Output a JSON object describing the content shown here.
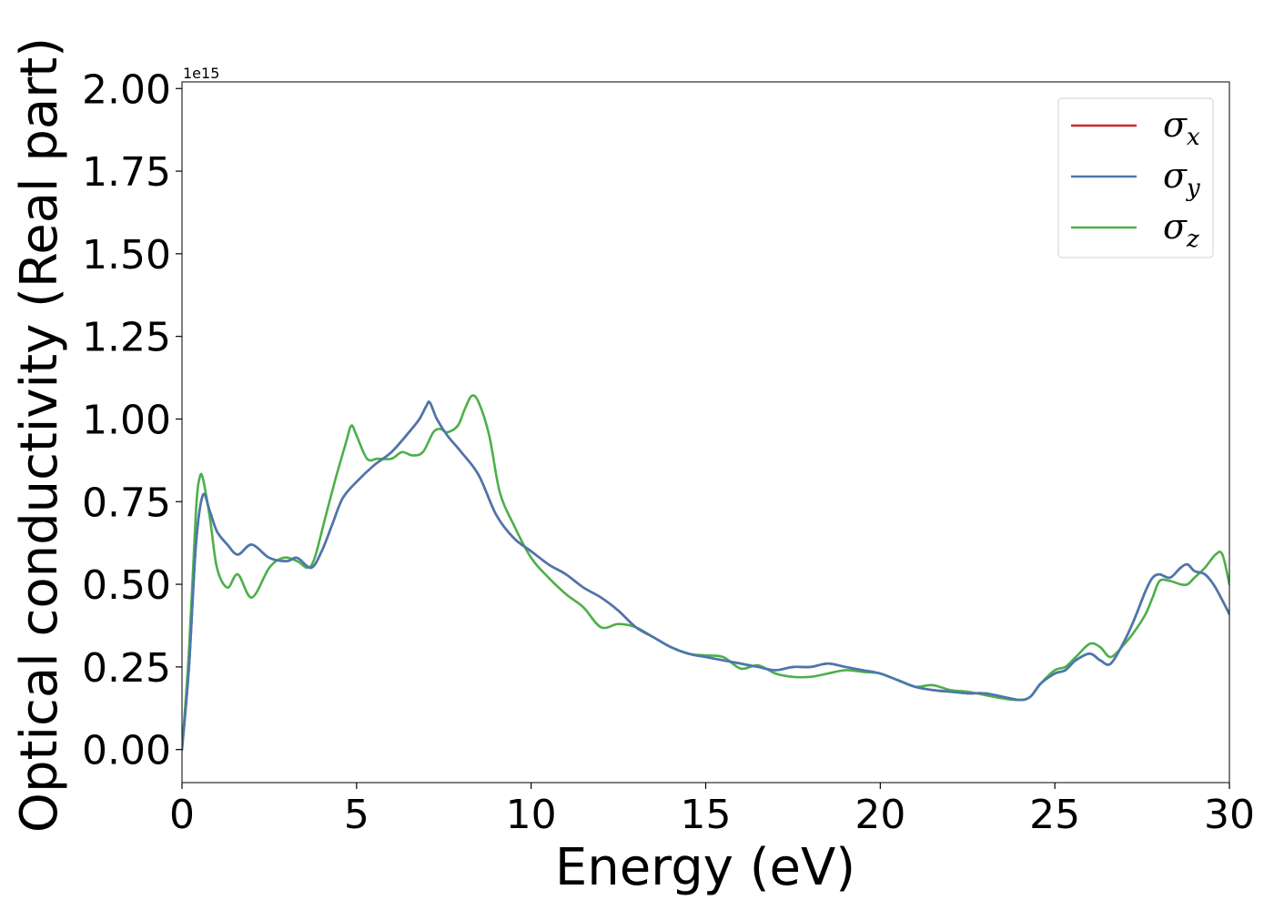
{
  "chart_data": {
    "type": "line",
    "title": "",
    "xlabel": "Energy (eV)",
    "ylabel": "Optical conductivity (Real part)",
    "y_offset_text": "1e15",
    "xlim": [
      0,
      30
    ],
    "ylim": [
      -0.1,
      2.02
    ],
    "xticks": [
      0,
      5,
      10,
      15,
      20,
      25,
      30
    ],
    "xtick_labels": [
      "0",
      "5",
      "10",
      "15",
      "20",
      "25",
      "30"
    ],
    "yticks": [
      0,
      0.25,
      0.5,
      0.75,
      1.0,
      1.25,
      1.5,
      1.75,
      2.0
    ],
    "ytick_labels": [
      "0.00",
      "0.25",
      "0.50",
      "0.75",
      "1.00",
      "1.25",
      "1.50",
      "1.75",
      "2.00"
    ],
    "grid": false,
    "legend_position": "top-right",
    "series": [
      {
        "name": "σx",
        "symbol": "σ",
        "subscript": "x",
        "color": "#d62728",
        "x": [
          0,
          0.2,
          0.4,
          0.6,
          0.8,
          1.0,
          1.3,
          1.6,
          2.0,
          2.5,
          3.0,
          3.3,
          3.7,
          4.0,
          4.3,
          4.6,
          5.0,
          5.5,
          6.0,
          6.5,
          6.8,
          7.0,
          7.1,
          7.3,
          7.6,
          8.0,
          8.5,
          9.0,
          9.5,
          10.0,
          10.5,
          11.0,
          11.5,
          12.0,
          12.5,
          13.0,
          13.5,
          14.0,
          14.5,
          15.0,
          15.5,
          16.0,
          16.5,
          17.0,
          17.5,
          18.0,
          18.5,
          19.0,
          19.5,
          20.0,
          20.5,
          21.0,
          21.5,
          22.0,
          22.5,
          23.0,
          23.5,
          24.0,
          24.3,
          24.6,
          25.0,
          25.3,
          25.6,
          26.0,
          26.3,
          26.6,
          27.0,
          27.3,
          27.6,
          27.8,
          28.0,
          28.3,
          28.6,
          28.8,
          29.0,
          29.3,
          29.6,
          30.0
        ],
        "y": [
          0,
          0.25,
          0.62,
          0.77,
          0.72,
          0.66,
          0.62,
          0.59,
          0.62,
          0.58,
          0.57,
          0.58,
          0.55,
          0.6,
          0.68,
          0.76,
          0.81,
          0.86,
          0.9,
          0.96,
          1.0,
          1.04,
          1.05,
          1.0,
          0.95,
          0.9,
          0.83,
          0.71,
          0.64,
          0.6,
          0.56,
          0.53,
          0.49,
          0.46,
          0.42,
          0.37,
          0.34,
          0.31,
          0.29,
          0.28,
          0.27,
          0.26,
          0.25,
          0.24,
          0.25,
          0.25,
          0.26,
          0.25,
          0.24,
          0.23,
          0.21,
          0.19,
          0.18,
          0.175,
          0.17,
          0.17,
          0.16,
          0.15,
          0.16,
          0.2,
          0.23,
          0.24,
          0.27,
          0.29,
          0.27,
          0.26,
          0.33,
          0.4,
          0.48,
          0.52,
          0.53,
          0.52,
          0.55,
          0.56,
          0.54,
          0.53,
          0.49,
          0.41
        ]
      },
      {
        "name": "σy",
        "symbol": "σ",
        "subscript": "y",
        "color": "#4878b0",
        "x": [
          0,
          0.2,
          0.4,
          0.6,
          0.8,
          1.0,
          1.3,
          1.6,
          2.0,
          2.5,
          3.0,
          3.3,
          3.7,
          4.0,
          4.3,
          4.6,
          5.0,
          5.5,
          6.0,
          6.5,
          6.8,
          7.0,
          7.1,
          7.3,
          7.6,
          8.0,
          8.5,
          9.0,
          9.5,
          10.0,
          10.5,
          11.0,
          11.5,
          12.0,
          12.5,
          13.0,
          13.5,
          14.0,
          14.5,
          15.0,
          15.5,
          16.0,
          16.5,
          17.0,
          17.5,
          18.0,
          18.5,
          19.0,
          19.5,
          20.0,
          20.5,
          21.0,
          21.5,
          22.0,
          22.5,
          23.0,
          23.5,
          24.0,
          24.3,
          24.6,
          25.0,
          25.3,
          25.6,
          26.0,
          26.3,
          26.6,
          27.0,
          27.3,
          27.6,
          27.8,
          28.0,
          28.3,
          28.6,
          28.8,
          29.0,
          29.3,
          29.6,
          30.0
        ],
        "y": [
          0,
          0.25,
          0.62,
          0.77,
          0.72,
          0.66,
          0.62,
          0.59,
          0.62,
          0.58,
          0.57,
          0.58,
          0.55,
          0.6,
          0.68,
          0.76,
          0.81,
          0.86,
          0.9,
          0.96,
          1.0,
          1.04,
          1.05,
          1.0,
          0.95,
          0.9,
          0.83,
          0.71,
          0.64,
          0.6,
          0.56,
          0.53,
          0.49,
          0.46,
          0.42,
          0.37,
          0.34,
          0.31,
          0.29,
          0.28,
          0.27,
          0.26,
          0.25,
          0.24,
          0.25,
          0.25,
          0.26,
          0.25,
          0.24,
          0.23,
          0.21,
          0.19,
          0.18,
          0.175,
          0.17,
          0.17,
          0.16,
          0.15,
          0.16,
          0.2,
          0.23,
          0.24,
          0.27,
          0.29,
          0.27,
          0.26,
          0.33,
          0.4,
          0.48,
          0.52,
          0.53,
          0.52,
          0.55,
          0.56,
          0.54,
          0.53,
          0.49,
          0.41
        ]
      },
      {
        "name": "σz",
        "symbol": "σ",
        "subscript": "z",
        "color": "#4daf4a",
        "x": [
          0,
          0.2,
          0.4,
          0.5,
          0.6,
          0.8,
          1.0,
          1.3,
          1.6,
          2.0,
          2.5,
          2.9,
          3.3,
          3.6,
          3.8,
          4.1,
          4.4,
          4.7,
          4.85,
          5.0,
          5.3,
          5.6,
          6.0,
          6.3,
          6.6,
          6.9,
          7.2,
          7.4,
          7.6,
          7.9,
          8.1,
          8.3,
          8.5,
          8.8,
          9.1,
          9.5,
          10.0,
          10.5,
          11.0,
          11.5,
          12.0,
          12.5,
          13.0,
          13.5,
          14.0,
          14.5,
          15.0,
          15.5,
          16.0,
          16.5,
          17.0,
          17.5,
          18.0,
          18.5,
          19.0,
          19.5,
          20.0,
          20.5,
          21.0,
          21.5,
          22.0,
          22.5,
          23.0,
          23.5,
          24.0,
          24.3,
          24.6,
          25.0,
          25.3,
          25.6,
          26.0,
          26.3,
          26.6,
          27.0,
          27.3,
          27.6,
          27.8,
          28.0,
          28.3,
          28.6,
          28.8,
          29.0,
          29.3,
          29.6,
          29.8,
          30.0
        ],
        "y": [
          0,
          0.3,
          0.72,
          0.82,
          0.82,
          0.7,
          0.55,
          0.49,
          0.53,
          0.46,
          0.55,
          0.58,
          0.57,
          0.55,
          0.58,
          0.7,
          0.82,
          0.93,
          0.98,
          0.95,
          0.88,
          0.88,
          0.88,
          0.9,
          0.89,
          0.9,
          0.96,
          0.97,
          0.96,
          0.98,
          1.03,
          1.07,
          1.05,
          0.95,
          0.78,
          0.68,
          0.58,
          0.52,
          0.47,
          0.43,
          0.37,
          0.38,
          0.37,
          0.34,
          0.31,
          0.29,
          0.285,
          0.28,
          0.245,
          0.255,
          0.23,
          0.22,
          0.22,
          0.23,
          0.24,
          0.235,
          0.23,
          0.21,
          0.19,
          0.195,
          0.18,
          0.175,
          0.165,
          0.155,
          0.15,
          0.16,
          0.2,
          0.24,
          0.25,
          0.28,
          0.32,
          0.31,
          0.28,
          0.32,
          0.36,
          0.41,
          0.46,
          0.51,
          0.51,
          0.5,
          0.5,
          0.52,
          0.55,
          0.59,
          0.59,
          0.5
        ]
      }
    ]
  }
}
